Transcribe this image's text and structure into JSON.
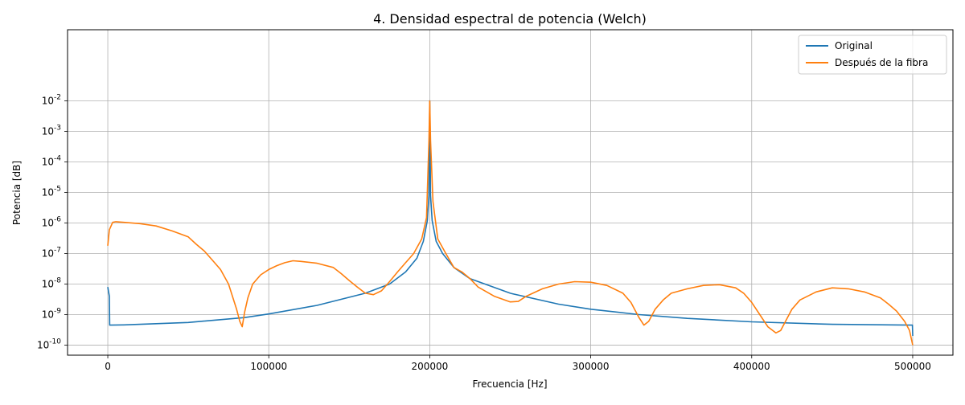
{
  "chart_data": {
    "type": "line",
    "title": "4. Densidad espectral de potencia (Welch)",
    "xlabel": "Frecuencia [Hz]",
    "ylabel": "Potencia [dB]",
    "xlim": [
      -25000,
      525000
    ],
    "ylim_log10": [
      -10.33,
      0.33
    ],
    "y_scale": "log",
    "grid": true,
    "legend_position": "top-right",
    "x_ticks": [
      {
        "value": 0,
        "label": "0"
      },
      {
        "value": 100000,
        "label": "100000"
      },
      {
        "value": 200000,
        "label": "200000"
      },
      {
        "value": 300000,
        "label": "300000"
      },
      {
        "value": 400000,
        "label": "400000"
      },
      {
        "value": 500000,
        "label": "500000"
      }
    ],
    "y_ticks": [
      {
        "exp": -10,
        "label": "-10"
      },
      {
        "exp": -9,
        "label": "-9"
      },
      {
        "exp": -8,
        "label": "-8"
      },
      {
        "exp": -7,
        "label": "-7"
      },
      {
        "exp": -6,
        "label": "-6"
      },
      {
        "exp": -5,
        "label": "-5"
      },
      {
        "exp": -4,
        "label": "-4"
      },
      {
        "exp": -3,
        "label": "-3"
      },
      {
        "exp": -2,
        "label": "-2"
      }
    ],
    "y_tick_base": "10",
    "series": [
      {
        "name": "Original",
        "color": "#1f77b4",
        "x": [
          0,
          1000,
          1200,
          10000,
          50000,
          85000,
          100000,
          130000,
          160000,
          175000,
          185000,
          192000,
          196000,
          198500,
          199500,
          200000,
          200500,
          201500,
          204000,
          208000,
          215000,
          225000,
          250000,
          280000,
          300000,
          330000,
          360000,
          400000,
          450000,
          499000,
          499800,
          500000
        ],
        "y": [
          8e-09,
          4e-09,
          4.5e-10,
          4.6e-10,
          5.5e-10,
          8e-10,
          1.05e-09,
          2e-09,
          5e-09,
          1e-08,
          2.5e-08,
          7e-08,
          2.5e-07,
          1.2e-06,
          8e-06,
          0.01,
          8e-06,
          1.2e-06,
          2.5e-07,
          1e-07,
          3.5e-08,
          1.5e-08,
          5e-09,
          2.2e-09,
          1.5e-09,
          1e-09,
          7.5e-10,
          5.8e-10,
          4.8e-10,
          4.5e-10,
          4.5e-10,
          2e-10
        ]
      },
      {
        "name": "Después de la fibra",
        "color": "#ff7f0e",
        "x": [
          0,
          1000,
          3000,
          5000,
          10000,
          20000,
          30000,
          40000,
          50000,
          55000,
          60000,
          65000,
          70000,
          75000,
          80000,
          82000,
          83500,
          85000,
          87000,
          90000,
          95000,
          100000,
          105000,
          110000,
          115000,
          120000,
          130000,
          140000,
          145000,
          150000,
          155000,
          160000,
          165000,
          170000,
          175000,
          180000,
          185000,
          190000,
          195000,
          198000,
          199500,
          200000,
          200500,
          202000,
          205000,
          210000,
          215000,
          220000,
          225000,
          230000,
          240000,
          250000,
          255000,
          260000,
          270000,
          280000,
          290000,
          300000,
          310000,
          320000,
          325000,
          330000,
          333000,
          336000,
          340000,
          345000,
          350000,
          360000,
          370000,
          380000,
          390000,
          395000,
          400000,
          405000,
          410000,
          415000,
          418000,
          421000,
          425000,
          430000,
          440000,
          450000,
          460000,
          470000,
          480000,
          485000,
          490000,
          495000,
          498000,
          500000
        ],
        "y": [
          1.8e-07,
          6e-07,
          1.05e-06,
          1.1e-06,
          1.05e-06,
          9.5e-07,
          8e-07,
          5.5e-07,
          3.5e-07,
          2e-07,
          1.2e-07,
          6e-08,
          3e-08,
          1e-08,
          1.5e-09,
          6e-10,
          4e-10,
          1.2e-09,
          3.5e-09,
          1e-08,
          2e-08,
          3e-08,
          4e-08,
          5e-08,
          5.8e-08,
          5.5e-08,
          4.8e-08,
          3.5e-08,
          2.2e-08,
          1.3e-08,
          8e-09,
          5e-09,
          4.5e-09,
          6e-09,
          1.2e-08,
          2.5e-08,
          5e-08,
          1e-07,
          3e-07,
          1.5e-06,
          0.0005,
          0.01,
          0.0005,
          5e-06,
          3e-07,
          1e-07,
          3.5e-08,
          2.5e-08,
          1.5e-08,
          8e-09,
          4e-09,
          2.6e-09,
          2.7e-09,
          4e-09,
          7e-09,
          1e-08,
          1.2e-08,
          1.15e-08,
          9e-09,
          5e-09,
          2.5e-09,
          8e-10,
          4.5e-10,
          6e-10,
          1.5e-09,
          3e-09,
          5e-09,
          7e-09,
          9e-09,
          9.5e-09,
          7.5e-09,
          5e-09,
          2.5e-09,
          1e-09,
          4e-10,
          2.5e-10,
          3e-10,
          6e-10,
          1.5e-09,
          3e-09,
          5.5e-09,
          7.5e-09,
          7e-09,
          5.5e-09,
          3.5e-09,
          2.2e-09,
          1.3e-09,
          6e-10,
          3e-10,
          1e-10
        ]
      }
    ]
  }
}
